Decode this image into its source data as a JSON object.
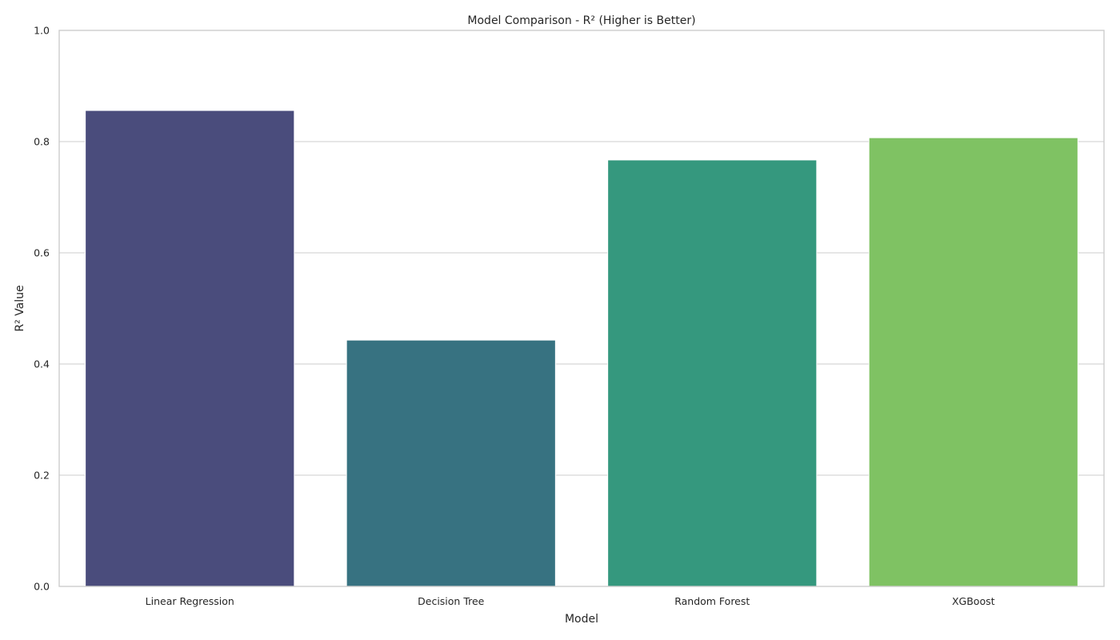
{
  "chart_data": {
    "type": "bar",
    "title": "Model Comparison - R² (Higher is Better)",
    "xlabel": "Model",
    "ylabel": "R² Value",
    "categories": [
      "Linear Regression",
      "Decision Tree",
      "Random Forest",
      "XGBoost"
    ],
    "values": [
      0.856,
      0.443,
      0.767,
      0.807
    ],
    "ylim": [
      0,
      1
    ],
    "yticks": [
      "0.0",
      "0.2",
      "0.4",
      "0.6",
      "0.8",
      "1.0"
    ],
    "grid": "horizontal",
    "legend": "none",
    "colors": [
      "#4a4c7c",
      "#377281",
      "#35987e",
      "#7fc263"
    ]
  }
}
